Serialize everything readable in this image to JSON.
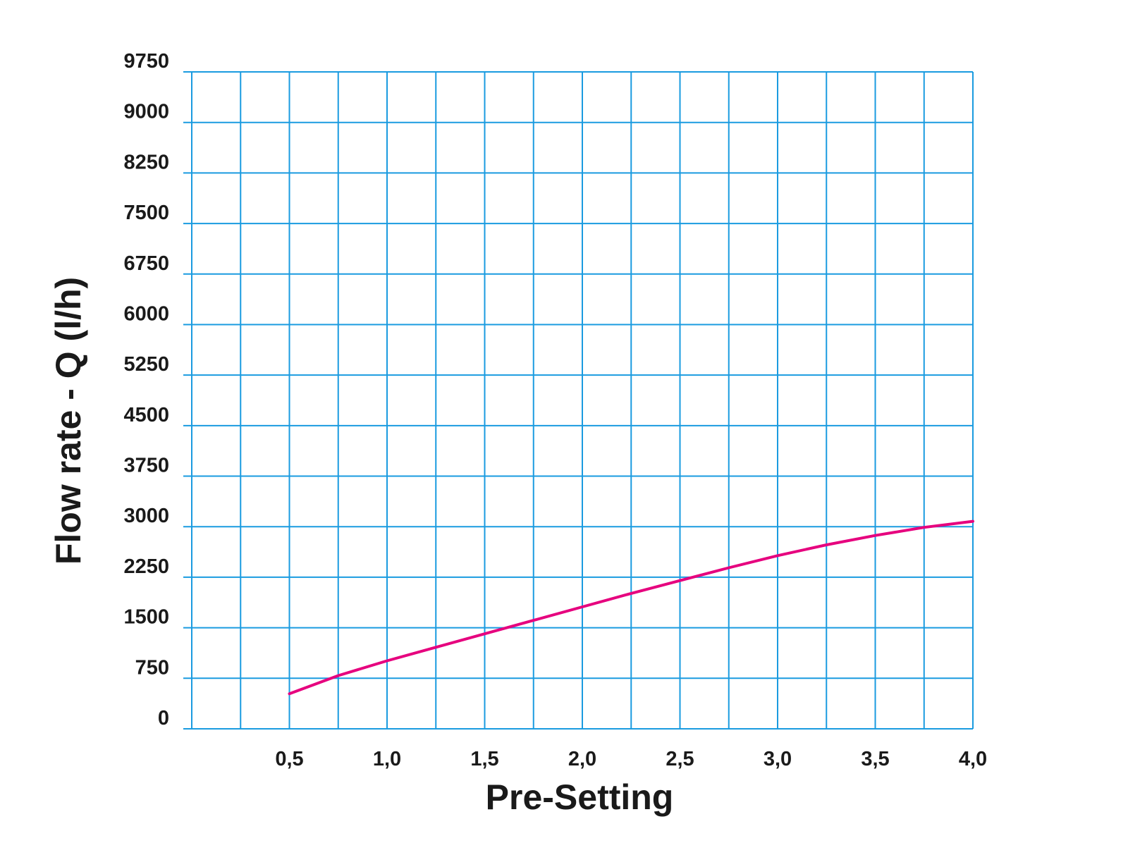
{
  "chart_data": {
    "type": "line",
    "title": "",
    "xlabel": "Pre-Setting",
    "ylabel": "Flow rate - Q (l/h)",
    "xlim": [
      0,
      4.0
    ],
    "ylim": [
      0,
      9750
    ],
    "grid": true,
    "x_ticks": [
      "0,5",
      "1,0",
      "1,5",
      "2,0",
      "2,5",
      "3,0",
      "3,5",
      "4,0"
    ],
    "x_tick_values": [
      0.5,
      1.0,
      1.5,
      2.0,
      2.5,
      3.0,
      3.5,
      4.0
    ],
    "y_ticks": [
      "0",
      "750",
      "1500",
      "2250",
      "3000",
      "3750",
      "4500",
      "5250",
      "6000",
      "6750",
      "7500",
      "8250",
      "9000",
      "9750"
    ],
    "y_tick_values": [
      0,
      750,
      1500,
      2250,
      3000,
      3750,
      4500,
      5250,
      6000,
      6750,
      7500,
      8250,
      9000,
      9750
    ],
    "x_minor_step": 0.25,
    "series": [
      {
        "color": "#e6007e",
        "x": [
          0.5,
          0.75,
          1.0,
          1.25,
          1.5,
          1.75,
          2.0,
          2.25,
          2.5,
          2.75,
          3.0,
          3.25,
          3.5,
          3.75,
          4.0
        ],
        "y": [
          520,
          790,
          1010,
          1210,
          1410,
          1610,
          1810,
          2010,
          2200,
          2390,
          2570,
          2730,
          2870,
          2990,
          3080
        ]
      }
    ],
    "grid_color": "#1a9be0"
  }
}
